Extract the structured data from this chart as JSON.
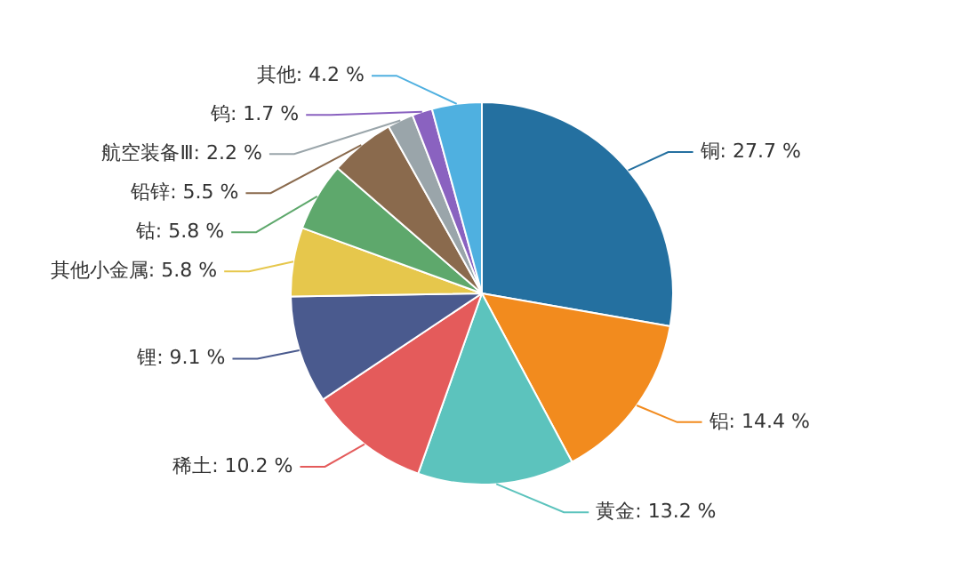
{
  "chart_data": {
    "type": "pie",
    "categories": [
      "铜",
      "铝",
      "黄金",
      "稀土",
      "锂",
      "其他小金属",
      "钴",
      "铅锌",
      "航空装备Ⅲ",
      "钨",
      "其他"
    ],
    "values": [
      27.7,
      14.4,
      13.2,
      10.2,
      9.1,
      5.8,
      5.8,
      5.5,
      2.2,
      1.7,
      4.2
    ],
    "value_labels": [
      "27.7 %",
      "14.4 %",
      "13.2 %",
      "10.2 %",
      "9.1 %",
      "5.8 %",
      "5.8 %",
      "5.5 %",
      "2.2 %",
      "1.7 %",
      "4.2 %"
    ],
    "colors": [
      "#2470a0",
      "#f28b1e",
      "#5cc3bd",
      "#e45b5b",
      "#4a5a8e",
      "#e6c74c",
      "#5ea86c",
      "#8a6a4d",
      "#9aa5aa",
      "#8a62c0",
      "#4fb0e0"
    ],
    "legend": false
  }
}
